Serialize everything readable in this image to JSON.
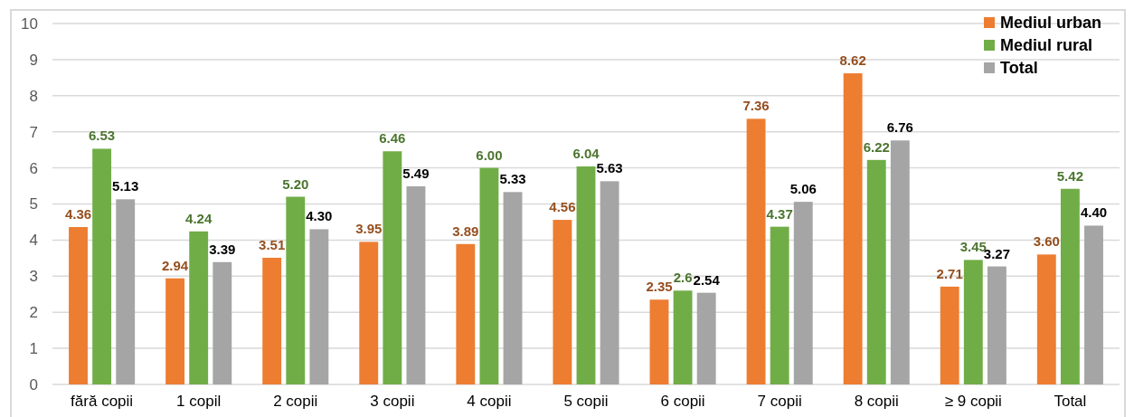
{
  "chart_data": {
    "type": "bar",
    "categories": [
      "fără copii",
      "1 copil",
      "2 copii",
      "3 copii",
      "4 copii",
      "5 copii",
      "6 copii",
      "7 copii",
      "8 copii",
      "≥ 9 copii",
      "Total"
    ],
    "series": [
      {
        "name": "Mediul urban",
        "color": "#ed7d31",
        "values": [
          4.36,
          2.94,
          3.51,
          3.95,
          3.89,
          4.56,
          2.35,
          7.36,
          8.62,
          2.71,
          3.6
        ],
        "value_labels": [
          "4.36",
          "2.94",
          "3.51",
          "3.95",
          "3.89",
          "4.56",
          "2.35",
          "7.36",
          "8.62",
          "2.71",
          "3.60"
        ]
      },
      {
        "name": "Mediul rural",
        "color": "#70ad47",
        "values": [
          6.53,
          4.24,
          5.2,
          6.46,
          6,
          6.04,
          2.6,
          4.37,
          6.22,
          3.45,
          5.42
        ],
        "value_labels": [
          "6.53",
          "4.24",
          "5.20",
          "6.46",
          "6.00",
          "6.04",
          "2.6",
          "4.37",
          "6.22",
          "3.45",
          "5.42"
        ]
      },
      {
        "name": "Total",
        "color": "#a5a5a5",
        "values": [
          5.13,
          3.39,
          4.3,
          5.49,
          5.33,
          5.63,
          2.54,
          5.06,
          6.76,
          3.27,
          4.4
        ],
        "value_labels": [
          "5.13",
          "3.39",
          "4.30",
          "5.49",
          "5.33",
          "5.63",
          "2.54",
          "5.06",
          "6.76",
          "3.27",
          "4.40"
        ]
      }
    ],
    "ylim": [
      0,
      10
    ],
    "yticks": [
      0,
      1,
      2,
      3,
      4,
      5,
      6,
      7,
      8,
      9,
      10
    ],
    "grid": "y",
    "legend": "top right"
  }
}
